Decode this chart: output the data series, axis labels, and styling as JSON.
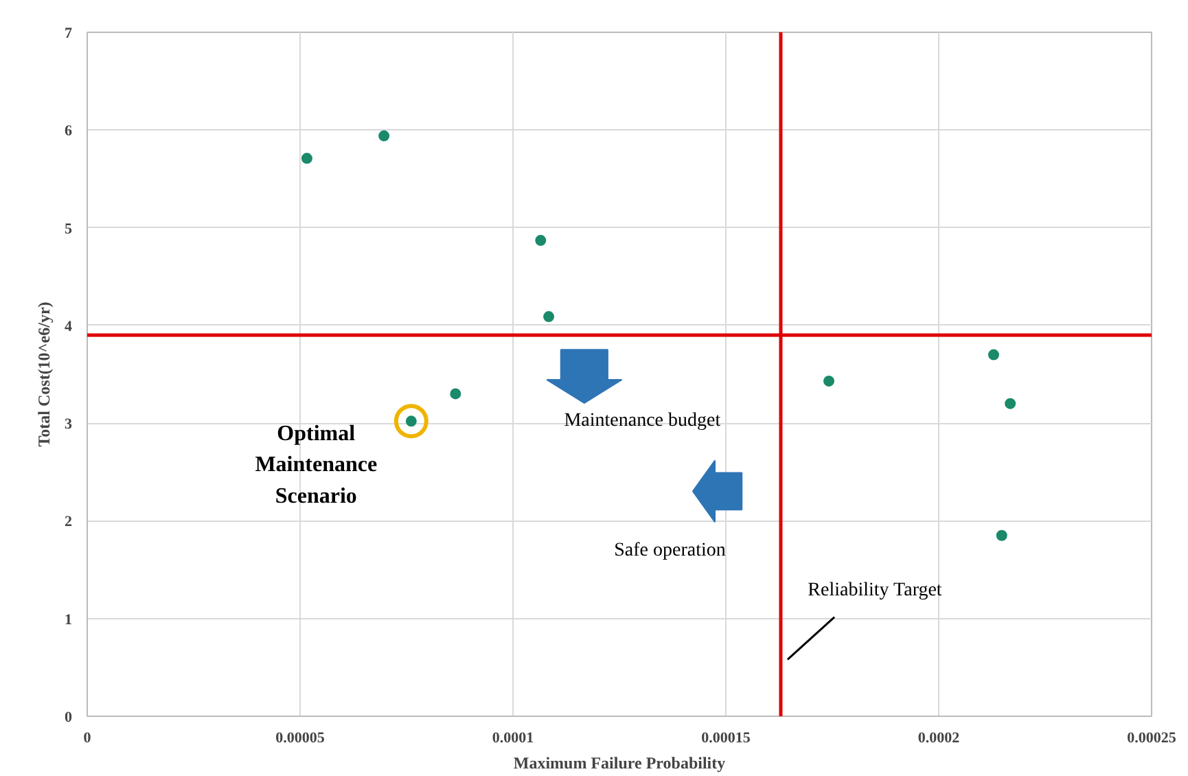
{
  "chart_data": {
    "type": "scatter",
    "xlabel": "Maximum Failure Probability",
    "ylabel": "Total Cost(10^e6/yr)",
    "x": [
      5.16e-05,
      6.97e-05,
      0.0001065,
      0.0001084,
      8.65e-05,
      7.61e-05,
      0.0001742,
      0.0002129,
      0.0002168,
      0.0002148
    ],
    "series": [
      {
        "color": "#1a8a6a",
        "values": [
          5.71,
          5.94,
          4.87,
          4.09,
          3.3,
          3.02,
          3.43,
          3.7,
          3.2,
          1.85
        ]
      }
    ],
    "xlim": [
      0,
      0.00025
    ],
    "ylim": [
      0,
      7
    ],
    "xticks": [
      0,
      {
        "value": 5e-05,
        "label": "0.00005"
      },
      {
        "value": 0.0001,
        "label": "0.0001"
      },
      {
        "value": 0.00015,
        "label": "0.00015"
      },
      {
        "value": 0.0002,
        "label": "0.0002"
      },
      {
        "value": 0.00025,
        "label": "0.00025"
      }
    ],
    "yticks": [
      0,
      1,
      2,
      3,
      4,
      5,
      6,
      7
    ],
    "ref_lines": [
      {
        "axis": "x",
        "value": 0.0001629,
        "label": "Reliability Target",
        "color": "#e00000"
      },
      {
        "axis": "y",
        "value": 3.9,
        "color": "#e00000"
      }
    ],
    "annotations": [
      {
        "text": "Optimal Maintenance Scenario",
        "x": 7.61e-05,
        "y": 3.02
      },
      "Maintenance budget",
      "Safe operation"
    ],
    "grid": true,
    "marker": "circle"
  }
}
